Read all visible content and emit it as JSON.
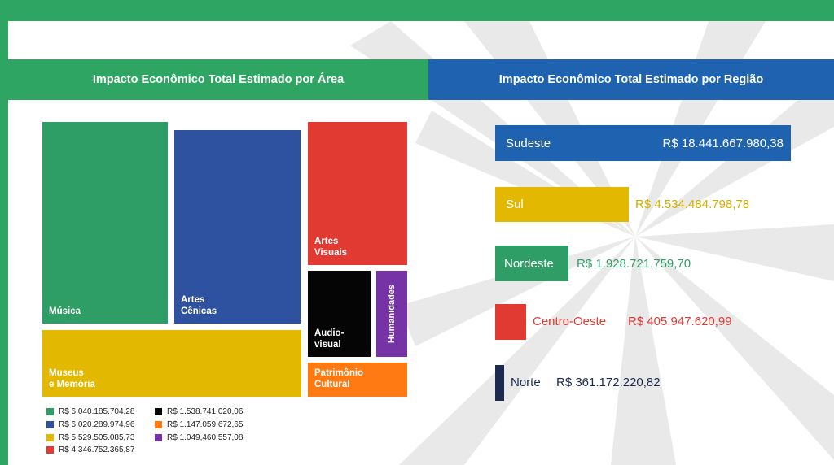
{
  "colors": {
    "frame_green": "#2ea562",
    "region_blue": "#1f63b0",
    "musica": "#2f9e66",
    "artes_cenicas": "#2f52a0",
    "artes_visuais": "#e03a33",
    "audiovisual": "#050505",
    "humanidades": "#7533a6",
    "museus": "#e2b800",
    "patrimonio": "#ff7a12",
    "sudeste": "#1f63b0",
    "sul": "#e2b800",
    "nordeste": "#2f9e66",
    "centro_oeste": "#e03a33",
    "norte": "#1c2a4f"
  },
  "header": {
    "left_title": "Impacto Econômico Total Estimado por Área",
    "right_title": "Impacto Econômico Total Estimado por Região"
  },
  "chart_data": [
    {
      "type": "treemap",
      "title": "Impacto Econômico Total Estimado por Área",
      "series": [
        {
          "name": "Música",
          "value": 6040185704.28,
          "value_label": "R$ 6.040.185.704,28",
          "color": "#2f9e66"
        },
        {
          "name": "Artes Cênicas",
          "value": 6020289974.96,
          "value_label": "R$ 6.020.289.974,96",
          "color": "#2f52a0"
        },
        {
          "name": "Museus e Memória",
          "value": 5529505085.73,
          "value_label": "R$ 5.529.505.085,73",
          "color": "#e2b800"
        },
        {
          "name": "Artes Visuais",
          "value": 4346752365.87,
          "value_label": "R$ 4.346.752.365,87",
          "color": "#e03a33"
        },
        {
          "name": "Audio-visual",
          "value": 1538741020.06,
          "value_label": "R$ 1.538.741.020,06",
          "color": "#050505"
        },
        {
          "name": "Patrimônio Cultural",
          "value": 1147059672.65,
          "value_label": "R$ 1.147.059.672,65",
          "color": "#ff7a12"
        },
        {
          "name": "Humanidades",
          "value": 1049460557.08,
          "value_label": "R$ 1.049,460.557,08",
          "color": "#7533a6"
        }
      ]
    },
    {
      "type": "bar",
      "orientation": "horizontal",
      "title": "Impacto Econômico Total Estimado por Região",
      "categories": [
        "Sudeste",
        "Sul",
        "Nordeste",
        "Centro-Oeste",
        "Norte"
      ],
      "values": [
        18441667980.38,
        4534484798.78,
        1928721759.7,
        405947620.99,
        361172220.82
      ],
      "value_labels": [
        "R$ 18.441.667.980,38",
        "R$ 4.534.484.798,78",
        "R$ 1.928.721.759,70",
        "R$ 405.947.620,99",
        "R$ 361.172.220,82"
      ],
      "colors": [
        "#1f63b0",
        "#e2b800",
        "#2f9e66",
        "#e03a33",
        "#1c2a4f"
      ]
    }
  ],
  "treemap_labels": {
    "musica": "Música",
    "artes_cenicas": "Artes\nCênicas",
    "artes_visuais": "Artes\nVisuais",
    "audiovisual": "Audio-\nvisual",
    "humanidades": "Humanidades",
    "museus": "Museus\ne Memória",
    "patrimonio": "Patrimônio\nCultural"
  },
  "legend": [
    {
      "color": "#2f9e66",
      "text": "R$ 6.040.185.704,28"
    },
    {
      "color": "#2f52a0",
      "text": "R$ 6.020.289.974,96"
    },
    {
      "color": "#e2b800",
      "text": "R$ 5.529.505.085,73"
    },
    {
      "color": "#e03a33",
      "text": "R$ 4.346.752.365,87"
    },
    {
      "color": "#050505",
      "text": "R$ 1.538.741.020,06"
    },
    {
      "color": "#ff7a12",
      "text": "R$ 1.147.059.672,65"
    },
    {
      "color": "#7533a6",
      "text": "R$ 1.049,460.557,08"
    }
  ]
}
